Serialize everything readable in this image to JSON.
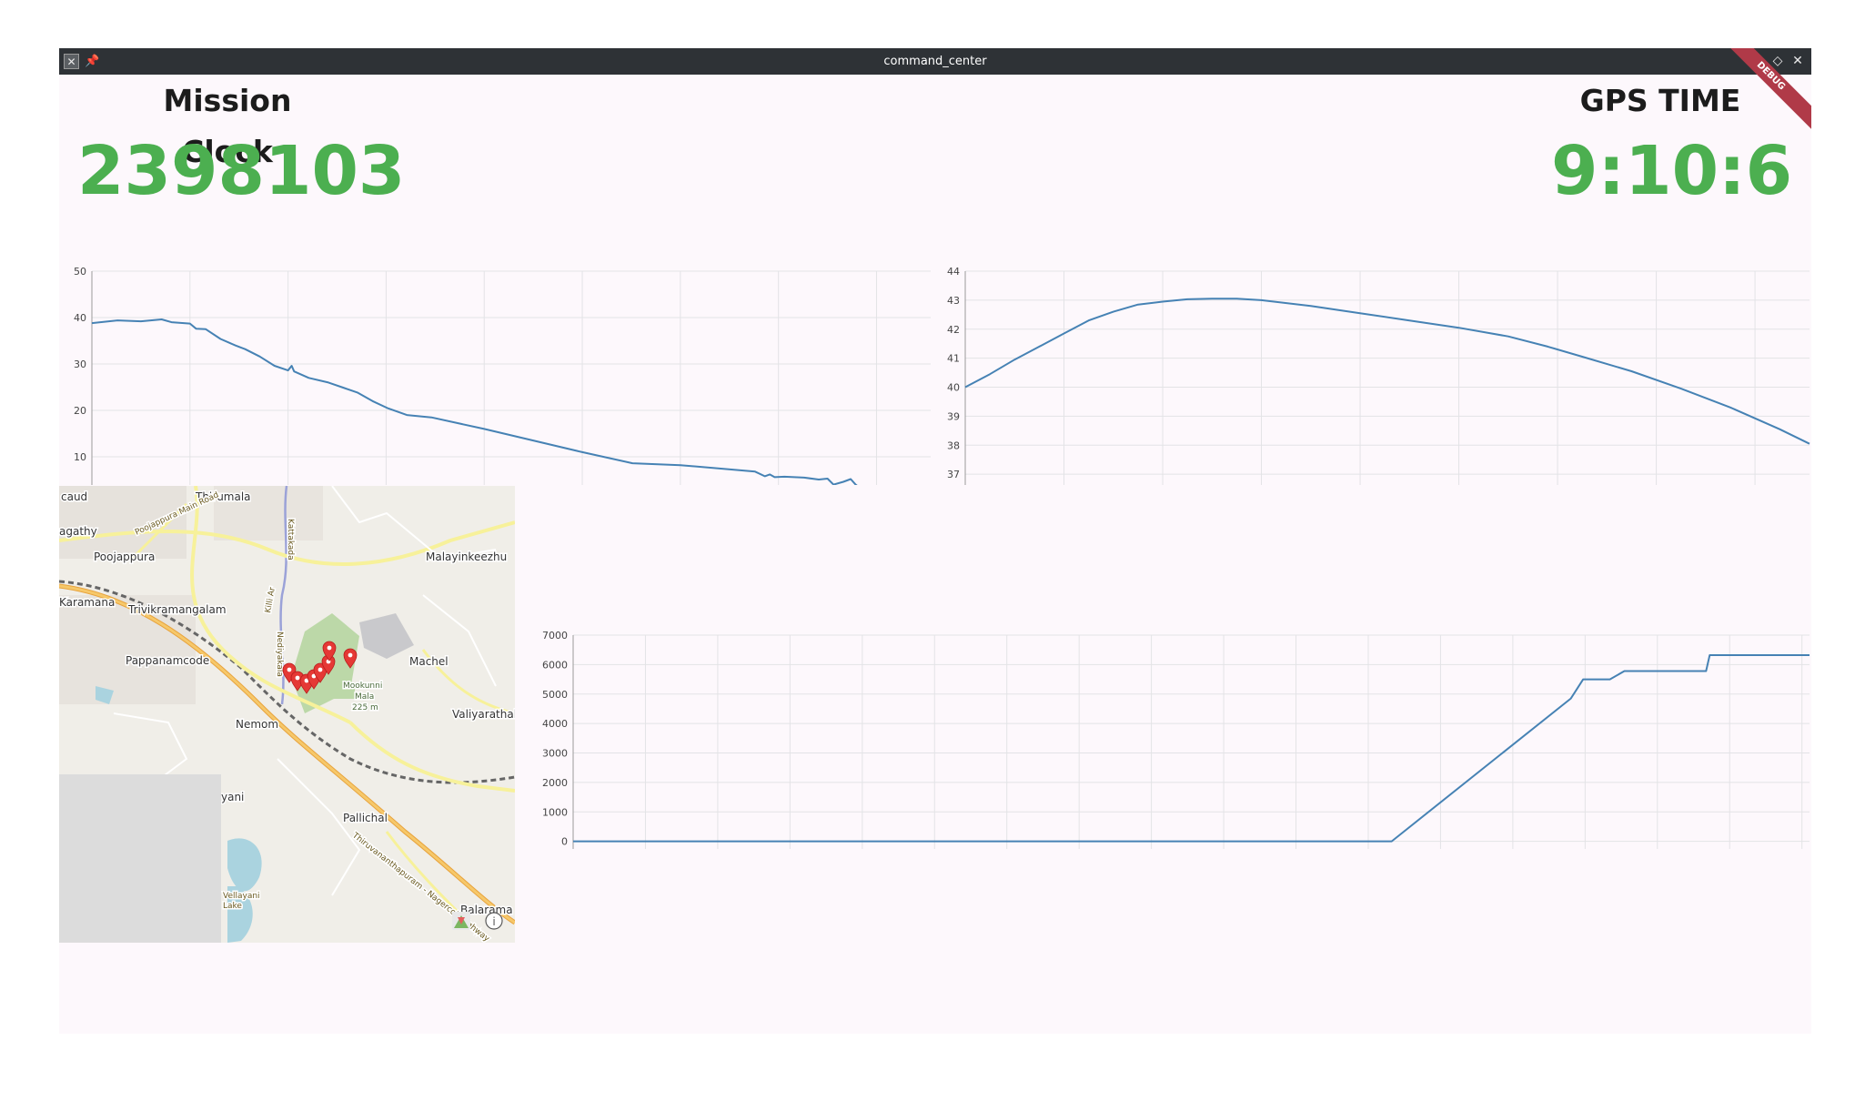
{
  "window": {
    "title": "command_center"
  },
  "icons": {
    "app": "app-x-icon",
    "pin": "pin-icon",
    "minimize": "chevron-down-icon",
    "maximize": "diamond-icon",
    "close": "close-icon"
  },
  "mission_clock": {
    "label": "Mission Clock",
    "value": "2398103"
  },
  "gps_time": {
    "label": "GPS TIME",
    "value": "9:10:6"
  },
  "debug_banner": "DEBUG",
  "colors": {
    "accent_green": "#4caf50",
    "line": "#4682b4",
    "titlebar": "#2e3236",
    "background": "#fdf8fc"
  },
  "map": {
    "labels": [
      "caud",
      "Thirumala",
      "agathy",
      "Poojappura",
      "Malayinkeezhu",
      "Karamana",
      "Trivikramangalam",
      "Pappanamcode",
      "Machel",
      "Mookunni",
      "Mala",
      "225 m",
      "Nemom",
      "Valiyarathala",
      "yani",
      "Pallichal",
      "Balarama",
      "Poojappura Main Road",
      "Killi Ar",
      "Kattakada",
      "Thiruvananthapuram - Nagercoil Highway",
      "Nediyakala",
      "Vellayani",
      "Lake"
    ],
    "markers": 8,
    "icons": [
      "map-marker-icon",
      "map-layers-icon",
      "info-icon"
    ]
  },
  "chart_data": [
    {
      "type": "line",
      "title": "",
      "xlabel": "",
      "ylabel": "",
      "xlim": [
        687670,
        2398103
      ],
      "ylim": [
        0,
        50
      ],
      "xticks": [
        "687670",
        "887670",
        "1087670",
        "1287670",
        "1487670",
        "1687670",
        "1887670",
        "2087670",
        "2287670"
      ],
      "yticks": [
        "0",
        "10",
        "20",
        "30",
        "40",
        "50"
      ],
      "grid": true,
      "x": [
        687670,
        740000,
        787670,
        830000,
        850000,
        887670,
        900000,
        920000,
        950000,
        980000,
        1000000,
        1030000,
        1060000,
        1087670,
        1095000,
        1100000,
        1130000,
        1170000,
        1200000,
        1230000,
        1260000,
        1290000,
        1330000,
        1380000,
        1487670,
        1687670,
        1790000,
        1887670,
        2040000,
        2060000,
        2070000,
        2080000,
        2100000,
        2140000,
        2170000,
        2187670,
        2200000,
        2220000,
        2235000,
        2245000,
        2260000,
        2275000,
        2290000,
        2300000,
        2320000,
        2340000,
        2360000,
        2380000,
        2398103
      ],
      "values": [
        38.8,
        39.4,
        39.2,
        39.6,
        39.0,
        38.7,
        37.6,
        37.5,
        35.4,
        34.0,
        33.2,
        31.6,
        29.6,
        28.6,
        29.6,
        28.4,
        27.0,
        26.0,
        24.9,
        23.8,
        22.0,
        20.5,
        19.0,
        18.5,
        16.0,
        11.0,
        8.6,
        8.2,
        6.8,
        5.8,
        6.2,
        5.6,
        5.7,
        5.5,
        5.1,
        5.3,
        4.0,
        4.6,
        5.2,
        4.0,
        2.8,
        3.6,
        2.2,
        1.4,
        0.4,
        1.0,
        1.8,
        1.5,
        1.6
      ]
    },
    {
      "type": "line",
      "title": "",
      "xlabel": "",
      "ylabel": "",
      "xlim": [
        687670,
        2398103
      ],
      "ylim": [
        36,
        44
      ],
      "xticks": [
        "687670",
        "887670",
        "1087670",
        "1287670",
        "1487670",
        "1687670",
        "1887670",
        "2087670",
        "2287670"
      ],
      "yticks": [
        "36",
        "37",
        "38",
        "39",
        "40",
        "41",
        "42",
        "43",
        "44"
      ],
      "grid": true,
      "x": [
        687670,
        737670,
        787670,
        837670,
        887670,
        937670,
        987670,
        1037670,
        1087670,
        1137670,
        1187670,
        1237670,
        1287670,
        1387670,
        1487670,
        1587670,
        1687670,
        1787670,
        1867670,
        1937670,
        2037670,
        2137670,
        2237670,
        2337670,
        2398103
      ],
      "values": [
        40.0,
        40.45,
        40.95,
        41.4,
        41.85,
        42.3,
        42.6,
        42.85,
        42.95,
        43.03,
        43.05,
        43.05,
        43.0,
        42.8,
        42.55,
        42.3,
        42.05,
        41.75,
        41.4,
        41.05,
        40.55,
        39.95,
        39.3,
        38.55,
        38.05
      ]
    },
    {
      "type": "line",
      "title": "",
      "xlabel": "",
      "ylabel": "",
      "xlim": [
        687670,
        2398103
      ],
      "ylim": [
        -1000,
        7000
      ],
      "xticks": [
        "687670",
        "787670",
        "887670",
        "987670",
        "1087670",
        "1187670",
        "1287670",
        "1387670",
        "1487670",
        "1587670",
        "1687670",
        "1787670",
        "1887670",
        "1987670",
        "2087670",
        "2187670",
        "2287670",
        "2387670"
      ],
      "yticks": [
        "-1000",
        "0",
        "1000",
        "2000",
        "3000",
        "4000",
        "5000",
        "6000",
        "7000"
      ],
      "grid": true,
      "x": [
        687670,
        1820000,
        2068000,
        2085000,
        2122000,
        2142000,
        2255000,
        2260000,
        2398103
      ],
      "values": [
        0,
        0,
        4850,
        5500,
        5500,
        5780,
        5780,
        6320,
        6320
      ]
    }
  ]
}
